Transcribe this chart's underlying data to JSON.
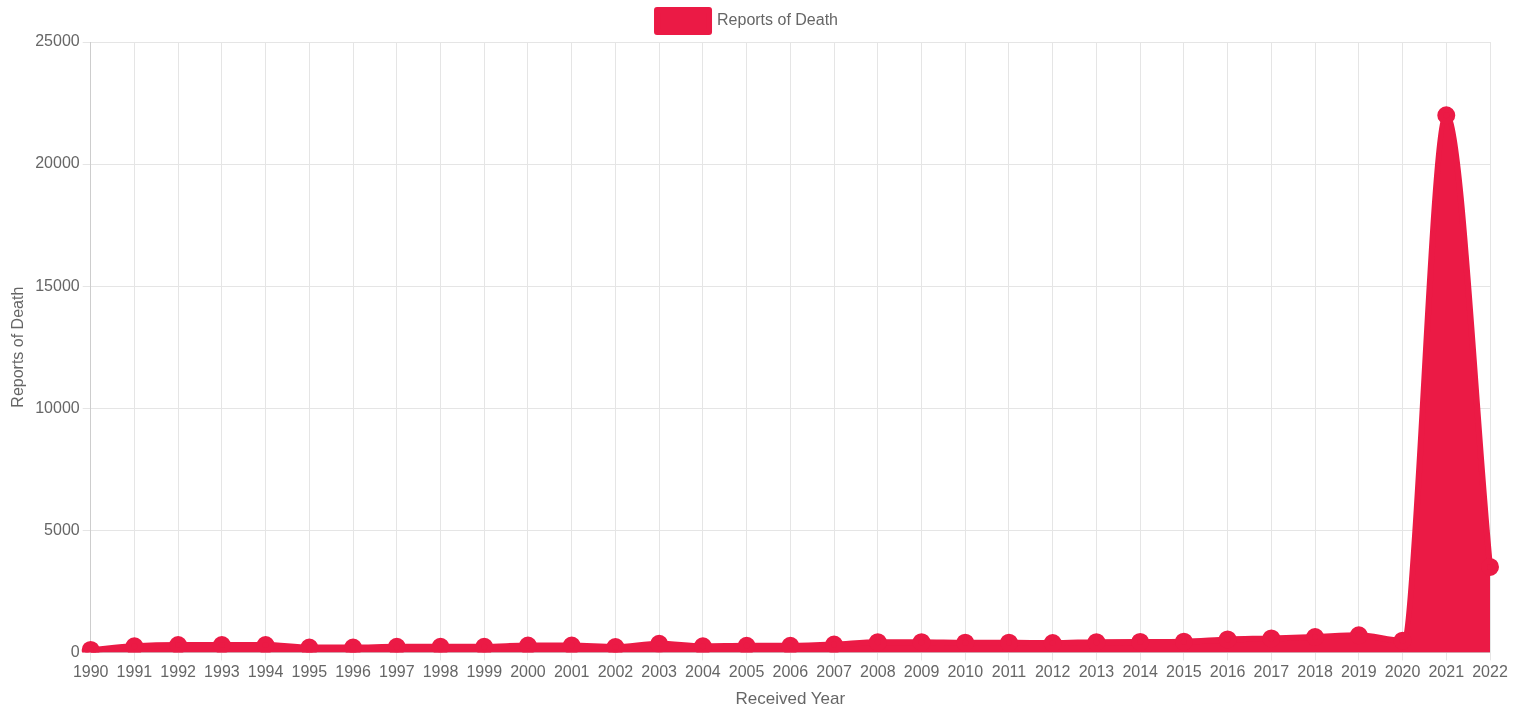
{
  "chart_data": {
    "type": "area",
    "xlabel": "Received Year",
    "ylabel": "Reports of Death",
    "categories": [
      "1990",
      "1991",
      "1992",
      "1993",
      "1994",
      "1995",
      "1996",
      "1997",
      "1998",
      "1999",
      "2000",
      "2001",
      "2002",
      "2003",
      "2004",
      "2005",
      "2006",
      "2007",
      "2008",
      "2009",
      "2010",
      "2011",
      "2012",
      "2013",
      "2014",
      "2015",
      "2016",
      "2017",
      "2018",
      "2019",
      "2020",
      "2021",
      "2022"
    ],
    "series": [
      {
        "name": "Reports of Death",
        "color": "#eb1a45",
        "values": [
          100,
          250,
          300,
          300,
          300,
          200,
          200,
          230,
          230,
          230,
          280,
          280,
          220,
          350,
          250,
          270,
          270,
          320,
          420,
          420,
          400,
          400,
          380,
          420,
          430,
          440,
          530,
          570,
          630,
          700,
          480,
          22000,
          3500
        ]
      }
    ],
    "ylim": [
      0,
      25000
    ],
    "yticks": [
      0,
      5000,
      10000,
      15000,
      20000,
      25000
    ],
    "grid": true,
    "legend": "top",
    "marker": "circle"
  }
}
